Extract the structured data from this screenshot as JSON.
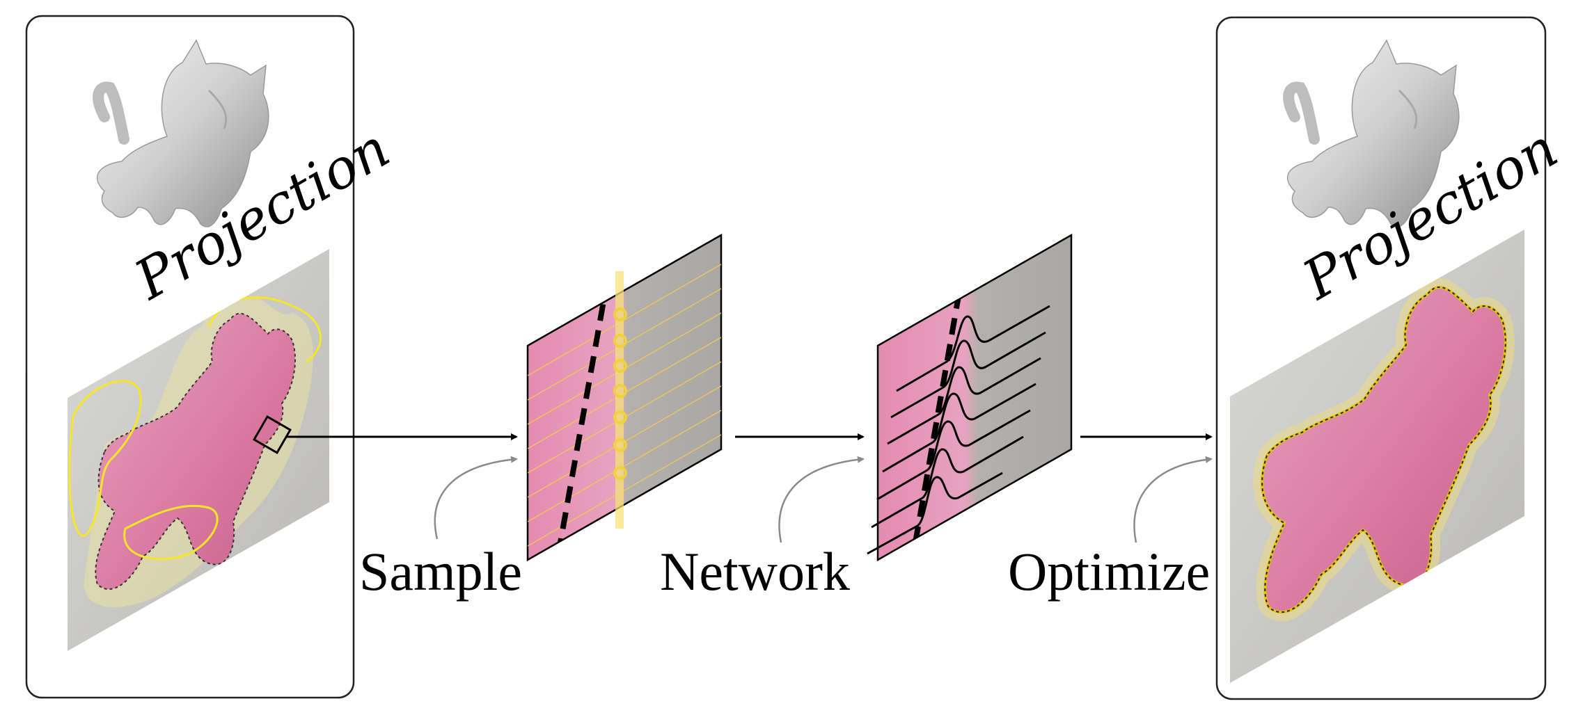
{
  "left_panel": {
    "label": "Projection"
  },
  "right_panel": {
    "label": "Projection"
  },
  "steps": {
    "sample": "Sample",
    "network": "Network",
    "optimize": "Optimize"
  }
}
